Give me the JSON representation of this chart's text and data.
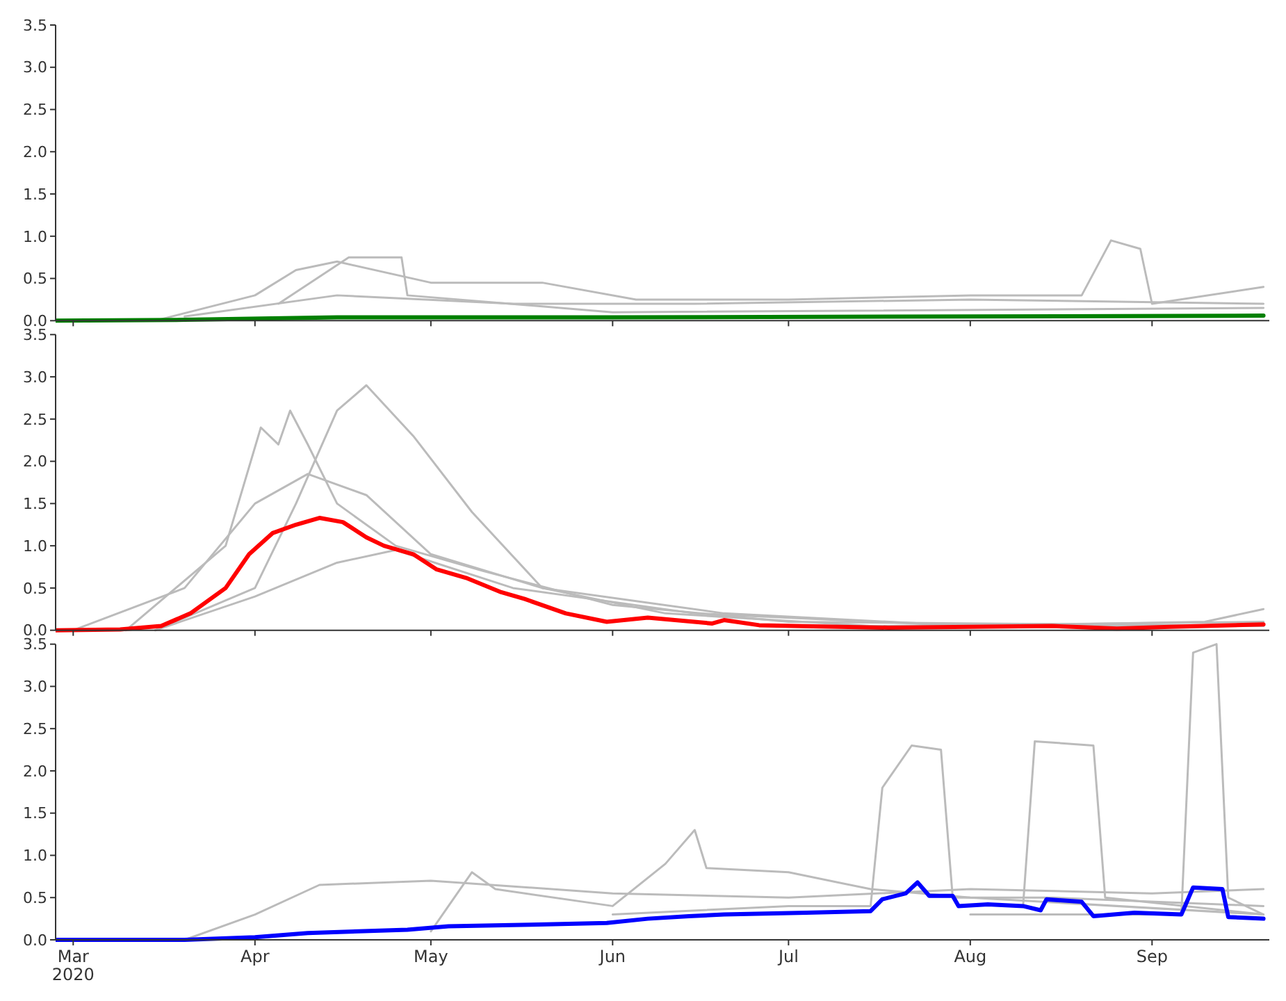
{
  "chart_data": [
    {
      "type": "line",
      "xlim": [
        "2020-02-27",
        "2020-09-21"
      ],
      "ylim": [
        0,
        3.5
      ],
      "yticks": [
        {
          "value": 0,
          "label": "0.0"
        },
        0.5,
        {
          "value": 1,
          "label": "1.0"
        },
        1.5,
        {
          "value": 2,
          "label": "2.0"
        },
        2.5,
        {
          "value": 3,
          "label": "3.0"
        },
        3.5
      ],
      "tick_labels": "y",
      "xticks": [
        {
          "value": "2020-03",
          "label": null
        },
        {
          "value": "2020-04",
          "label": null
        },
        {
          "value": "2020-05",
          "label": null
        },
        {
          "value": "2020-06",
          "label": null
        },
        {
          "value": "2020-07",
          "label": null
        },
        {
          "value": "2020-08",
          "label": null
        },
        {
          "value": "2020-09",
          "label": null
        }
      ],
      "series": [
        {
          "color": "#bbbbbb",
          "x": [
            "2020-03-15",
            "2020-04-01",
            "2020-04-08",
            "2020-04-15",
            "2020-05-01",
            "2020-05-20",
            "2020-06-05",
            "2020-07-01",
            "2020-08-01",
            "2020-08-20",
            "2020-08-25",
            "2020-08-30",
            "2020-09-01",
            "2020-09-20"
          ],
          "values": [
            0,
            0.3,
            0.6,
            0.7,
            0.45,
            0.45,
            0.25,
            0.25,
            0.3,
            0.3,
            0.95,
            0.85,
            0.2,
            0.4
          ]
        },
        {
          "color": "#bbbbbb",
          "x": [
            "2020-03-20",
            "2020-04-15",
            "2020-05-15",
            "2020-06-15",
            "2020-08-01",
            "2020-09-20"
          ],
          "values": [
            0.05,
            0.3,
            0.2,
            0.2,
            0.25,
            0.2
          ]
        },
        {
          "color": "#bbbbbb",
          "x": [
            "2020-04-05",
            "2020-04-17",
            "2020-04-26",
            "2020-04-27",
            "2020-06-01",
            "2020-09-20"
          ],
          "values": [
            0.2,
            0.75,
            0.75,
            0.3,
            0.1,
            0.15
          ]
        },
        {
          "color": "#008000",
          "x": [
            "2020-02-27",
            "2020-03-20",
            "2020-04-15",
            "2020-06-01",
            "2020-08-01",
            "2020-09-20"
          ],
          "values": [
            0,
            0.01,
            0.04,
            0.04,
            0.05,
            0.06
          ]
        }
      ]
    },
    {
      "type": "line",
      "xlim": [
        "2020-02-27",
        "2020-09-21"
      ],
      "ylim": [
        0,
        3.5
      ],
      "yticks": [
        {
          "value": 0,
          "label": "0.0"
        },
        0.5,
        {
          "value": 1,
          "label": "1.0"
        },
        1.5,
        {
          "value": 2,
          "label": "2.0"
        },
        2.5,
        {
          "value": 3,
          "label": "3.0"
        },
        3.5
      ],
      "tick_labels": "y",
      "xticks": [
        {
          "value": "2020-03",
          "label": null
        },
        {
          "value": "2020-04",
          "label": null
        },
        {
          "value": "2020-05",
          "label": null
        },
        {
          "value": "2020-06",
          "label": null
        },
        {
          "value": "2020-07",
          "label": null
        },
        {
          "value": "2020-08",
          "label": null
        },
        {
          "value": "2020-09",
          "label": null
        }
      ],
      "series": [
        {
          "color": "#bbbbbb",
          "x": [
            "2020-03-15",
            "2020-04-01",
            "2020-04-08",
            "2020-04-15",
            "2020-04-20",
            "2020-04-28",
            "2020-05-08",
            "2020-05-20",
            "2020-06-10",
            "2020-07-15",
            "2020-09-20"
          ],
          "values": [
            0,
            0.5,
            1.5,
            2.6,
            2.9,
            2.3,
            1.4,
            0.5,
            0.2,
            0.05,
            0.1
          ]
        },
        {
          "color": "#bbbbbb",
          "x": [
            "2020-03-10",
            "2020-03-27",
            "2020-04-02",
            "2020-04-05",
            "2020-04-07",
            "2020-04-10",
            "2020-04-15",
            "2020-04-25",
            "2020-05-10",
            "2020-06-01",
            "2020-07-01",
            "2020-09-20"
          ],
          "values": [
            0,
            1.0,
            2.4,
            2.2,
            2.6,
            2.2,
            1.5,
            1.0,
            0.7,
            0.3,
            0.1,
            0.05
          ]
        },
        {
          "color": "#bbbbbb",
          "x": [
            "2020-03-01",
            "2020-03-20",
            "2020-04-01",
            "2020-04-10",
            "2020-04-20",
            "2020-05-01",
            "2020-05-20",
            "2020-06-20",
            "2020-08-01",
            "2020-09-10",
            "2020-09-20"
          ],
          "values": [
            0,
            0.5,
            1.5,
            1.85,
            1.6,
            0.9,
            0.5,
            0.2,
            0.05,
            0.1,
            0.25
          ]
        },
        {
          "color": "#bbbbbb",
          "x": [
            "2020-03-15",
            "2020-04-01",
            "2020-04-15",
            "2020-04-25",
            "2020-05-15",
            "2020-06-15",
            "2020-08-01",
            "2020-09-20"
          ],
          "values": [
            0,
            0.4,
            0.8,
            0.95,
            0.5,
            0.2,
            0.05,
            0.05
          ]
        },
        {
          "color": "#ff0000",
          "x": [
            "2020-02-27",
            "2020-03-09",
            "2020-03-16",
            "2020-03-21",
            "2020-03-27",
            "2020-03-31",
            "2020-04-04",
            "2020-04-08",
            "2020-04-12",
            "2020-04-16",
            "2020-04-20",
            "2020-04-23",
            "2020-04-28",
            "2020-05-02",
            "2020-05-07",
            "2020-05-13",
            "2020-05-17",
            "2020-05-24",
            "2020-05-31",
            "2020-06-07",
            "2020-06-18",
            "2020-06-20",
            "2020-06-26",
            "2020-07-18",
            "2020-08-15",
            "2020-08-26",
            "2020-09-04",
            "2020-09-20"
          ],
          "values": [
            0,
            0.01,
            0.05,
            0.2,
            0.5,
            0.9,
            1.15,
            1.25,
            1.33,
            1.28,
            1.1,
            1.0,
            0.9,
            0.72,
            0.62,
            0.45,
            0.37,
            0.2,
            0.1,
            0.15,
            0.08,
            0.12,
            0.06,
            0.03,
            0.05,
            0.02,
            0.04,
            0.07
          ]
        }
      ]
    },
    {
      "type": "line",
      "xlim": [
        "2020-02-27",
        "2020-09-21"
      ],
      "ylim": [
        0,
        3.5
      ],
      "yticks": [
        {
          "value": 0,
          "label": "0.0"
        },
        0.5,
        {
          "value": 1,
          "label": "1.0"
        },
        1.5,
        {
          "value": 2,
          "label": "2.0"
        },
        2.5,
        {
          "value": 3,
          "label": "3.0"
        },
        3.5
      ],
      "xticks": [
        {
          "value": "2020-03",
          "label": "Mar\n2020"
        },
        {
          "value": "2020-04",
          "label": "Apr"
        },
        {
          "value": "2020-05",
          "label": "May"
        },
        {
          "value": "2020-06",
          "label": "Jun"
        },
        {
          "value": "2020-07",
          "label": "Jul"
        },
        {
          "value": "2020-08",
          "label": "Aug"
        },
        {
          "value": "2020-09",
          "label": "Sep"
        }
      ],
      "series": [
        {
          "color": "#bbbbbb",
          "x": [
            "2020-03-20",
            "2020-04-01",
            "2020-04-12",
            "2020-05-01",
            "2020-06-01",
            "2020-07-01",
            "2020-08-01",
            "2020-09-01",
            "2020-09-20"
          ],
          "values": [
            0,
            0.3,
            0.65,
            0.7,
            0.55,
            0.5,
            0.6,
            0.55,
            0.6
          ]
        },
        {
          "color": "#bbbbbb",
          "x": [
            "2020-06-01",
            "2020-07-01",
            "2020-07-15",
            "2020-07-17",
            "2020-07-22",
            "2020-07-27",
            "2020-07-29",
            "2020-08-15",
            "2020-09-20"
          ],
          "values": [
            0.3,
            0.4,
            0.4,
            1.8,
            2.3,
            2.25,
            0.5,
            0.5,
            0.4
          ]
        },
        {
          "color": "#bbbbbb",
          "x": [
            "2020-08-10",
            "2020-08-12",
            "2020-08-22",
            "2020-08-24",
            "2020-09-20"
          ],
          "values": [
            0.4,
            2.35,
            2.3,
            0.5,
            0.3
          ]
        },
        {
          "color": "#bbbbbb",
          "x": [
            "2020-08-01",
            "2020-09-06",
            "2020-09-08",
            "2020-09-12",
            "2020-09-14",
            "2020-09-20"
          ],
          "values": [
            0.3,
            0.3,
            3.4,
            3.5,
            0.5,
            0.3
          ]
        },
        {
          "color": "#bbbbbb",
          "x": [
            "2020-05-01",
            "2020-05-08",
            "2020-05-12",
            "2020-06-01",
            "2020-06-10",
            "2020-06-15",
            "2020-06-17",
            "2020-07-01",
            "2020-07-15",
            "2020-08-01",
            "2020-09-20"
          ],
          "values": [
            0.1,
            0.8,
            0.6,
            0.4,
            0.9,
            1.3,
            0.85,
            0.8,
            0.6,
            0.5,
            0.3
          ]
        },
        {
          "color": "#0000ff",
          "x": [
            "2020-02-27",
            "2020-03-20",
            "2020-04-01",
            "2020-04-10",
            "2020-04-27",
            "2020-05-04",
            "2020-05-18",
            "2020-05-31",
            "2020-06-07",
            "2020-06-14",
            "2020-06-20",
            "2020-07-04",
            "2020-07-15",
            "2020-07-17",
            "2020-07-21",
            "2020-07-23",
            "2020-07-25",
            "2020-07-29",
            "2020-07-30",
            "2020-08-04",
            "2020-08-10",
            "2020-08-13",
            "2020-08-14",
            "2020-08-20",
            "2020-08-22",
            "2020-08-29",
            "2020-09-06",
            "2020-09-08",
            "2020-09-13",
            "2020-09-14",
            "2020-09-20"
          ],
          "values": [
            0,
            0,
            0.03,
            0.08,
            0.12,
            0.16,
            0.18,
            0.2,
            0.25,
            0.28,
            0.3,
            0.32,
            0.34,
            0.48,
            0.55,
            0.68,
            0.52,
            0.52,
            0.4,
            0.42,
            0.4,
            0.35,
            0.48,
            0.45,
            0.28,
            0.32,
            0.3,
            0.62,
            0.6,
            0.27,
            0.25
          ]
        }
      ]
    }
  ]
}
